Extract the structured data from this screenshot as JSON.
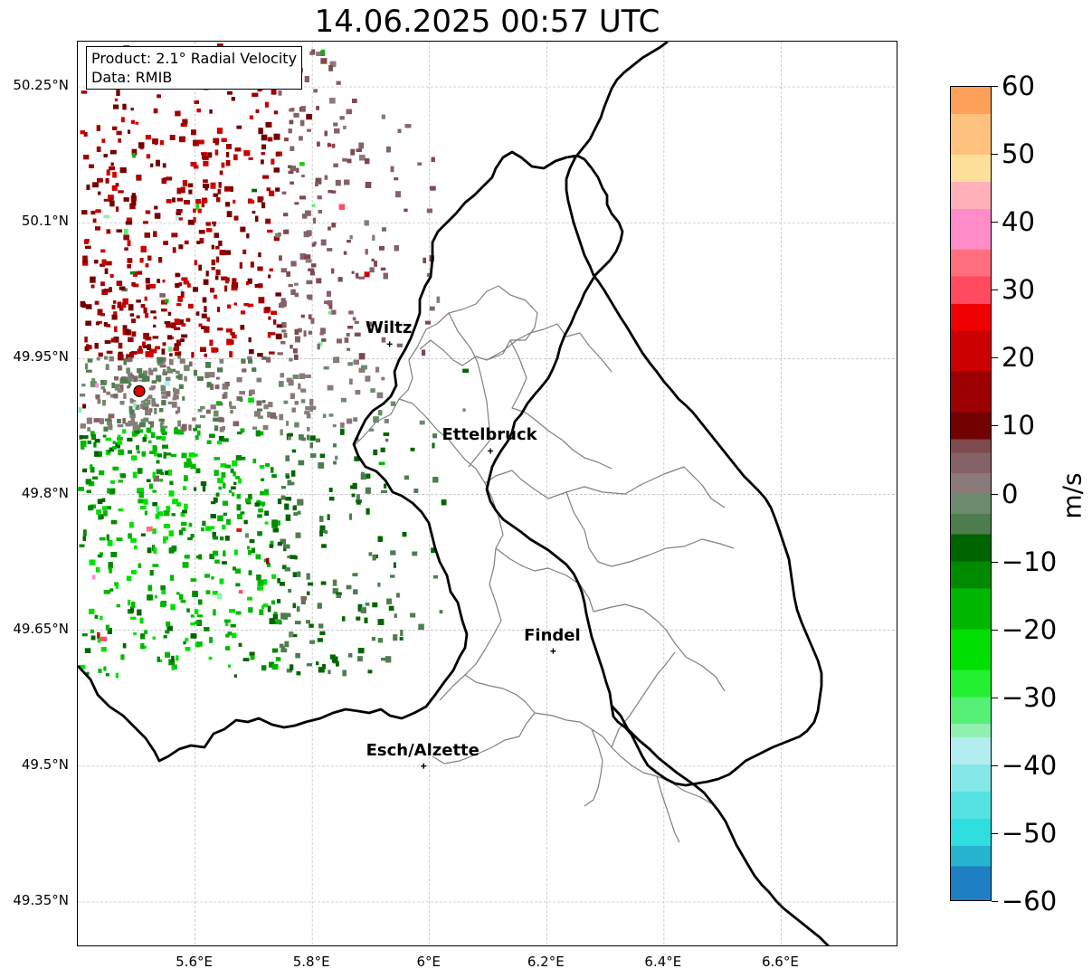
{
  "title": "14.06.2025 00:57 UTC",
  "info": {
    "product": "Product: 2.1° Radial Velocity",
    "data": "Data: RMIB"
  },
  "map": {
    "extent": {
      "lon": [
        5.4,
        6.8
      ],
      "lat": [
        49.3,
        50.3
      ]
    },
    "lat_ticks": [
      {
        "value": 50.25,
        "label": "50.25°N"
      },
      {
        "value": 50.1,
        "label": "50.1°N"
      },
      {
        "value": 49.95,
        "label": "49.95°N"
      },
      {
        "value": 49.8,
        "label": "49.8°N"
      },
      {
        "value": 49.65,
        "label": "49.65°N"
      },
      {
        "value": 49.5,
        "label": "49.5°N"
      },
      {
        "value": 49.35,
        "label": "49.35°N"
      }
    ],
    "lon_ticks": [
      {
        "value": 5.6,
        "label": "5.6°E"
      },
      {
        "value": 5.8,
        "label": "5.8°E"
      },
      {
        "value": 6.0,
        "label": "6°E"
      },
      {
        "value": 6.2,
        "label": "6.2°E"
      },
      {
        "value": 6.4,
        "label": "6.4°E"
      },
      {
        "value": 6.6,
        "label": "6.6°E"
      }
    ],
    "radar_site": {
      "lon": 5.505,
      "lat": 49.914
    },
    "cities": [
      {
        "name": "Wiltz",
        "lon": 5.932,
        "lat": 49.966
      },
      {
        "name": "Ettelbruck",
        "lon": 6.104,
        "lat": 49.848
      },
      {
        "name": "Findel",
        "lon": 6.211,
        "lat": 49.627
      },
      {
        "name": "Esch/Alzette",
        "lon": 5.99,
        "lat": 49.5
      }
    ],
    "grid": true
  },
  "colorbar": {
    "label": "m/s",
    "min": -60,
    "max": 60,
    "ticks": [
      {
        "value": 60,
        "label": "60"
      },
      {
        "value": 50,
        "label": "50"
      },
      {
        "value": 40,
        "label": "40"
      },
      {
        "value": 30,
        "label": "30"
      },
      {
        "value": 20,
        "label": "20"
      },
      {
        "value": 10,
        "label": "10"
      },
      {
        "value": 0,
        "label": "0"
      },
      {
        "value": -10,
        "label": "−10"
      },
      {
        "value": -20,
        "label": "−20"
      },
      {
        "value": -30,
        "label": "−30"
      },
      {
        "value": -40,
        "label": "−40"
      },
      {
        "value": -50,
        "label": "−50"
      },
      {
        "value": -60,
        "label": "−60"
      }
    ],
    "segments": [
      {
        "from": -60,
        "to": -55,
        "color": "#1f7fc4"
      },
      {
        "from": -55,
        "to": -52,
        "color": "#26b4d0"
      },
      {
        "from": -52,
        "to": -48,
        "color": "#2fdede"
      },
      {
        "from": -48,
        "to": -44,
        "color": "#55e2e2"
      },
      {
        "from": -44,
        "to": -40,
        "color": "#85e8e8"
      },
      {
        "from": -40,
        "to": -36,
        "color": "#b2eef0"
      },
      {
        "from": -36,
        "to": -34,
        "color": "#8ff0b0"
      },
      {
        "from": -34,
        "to": -30,
        "color": "#55f075"
      },
      {
        "from": -30,
        "to": -26,
        "color": "#22f030"
      },
      {
        "from": -26,
        "to": -20,
        "color": "#00e000"
      },
      {
        "from": -20,
        "to": -14,
        "color": "#00b800"
      },
      {
        "from": -14,
        "to": -10,
        "color": "#008a00"
      },
      {
        "from": -10,
        "to": -6,
        "color": "#006400"
      },
      {
        "from": -6,
        "to": -3,
        "color": "#4e7c4e"
      },
      {
        "from": -3,
        "to": 0,
        "color": "#6e8a6e"
      },
      {
        "from": 0,
        "to": 3,
        "color": "#8a7a7a"
      },
      {
        "from": 3,
        "to": 6,
        "color": "#856268"
      },
      {
        "from": 6,
        "to": 8,
        "color": "#7e4a4e"
      },
      {
        "from": 8,
        "to": 12,
        "color": "#720000"
      },
      {
        "from": 12,
        "to": 18,
        "color": "#9c0000"
      },
      {
        "from": 18,
        "to": 24,
        "color": "#cc0000"
      },
      {
        "from": 24,
        "to": 28,
        "color": "#f00000"
      },
      {
        "from": 28,
        "to": 32,
        "color": "#ff4a60"
      },
      {
        "from": 32,
        "to": 36,
        "color": "#ff6f7e"
      },
      {
        "from": 36,
        "to": 42,
        "color": "#ff8cc8"
      },
      {
        "from": 42,
        "to": 46,
        "color": "#ffb0b8"
      },
      {
        "from": 46,
        "to": 50,
        "color": "#ffe09a"
      },
      {
        "from": 50,
        "to": 56,
        "color": "#ffc27e"
      },
      {
        "from": 56,
        "to": 60,
        "color": "#ffa05a"
      }
    ]
  }
}
